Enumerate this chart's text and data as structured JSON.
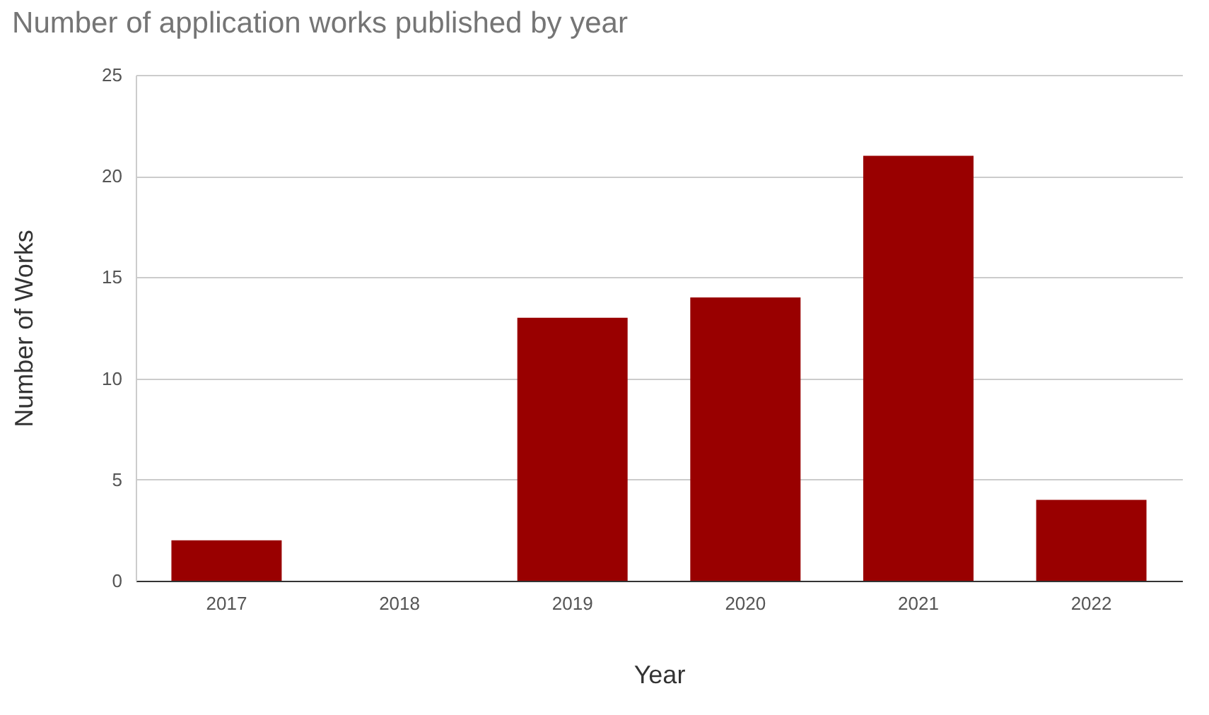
{
  "chart_data": {
    "type": "bar",
    "title": "Number of application works published by year",
    "xlabel": "Year",
    "ylabel": "Number of Works",
    "categories": [
      "2017",
      "2018",
      "2019",
      "2020",
      "2021",
      "2022"
    ],
    "values": [
      2,
      0,
      13,
      14,
      21,
      4
    ],
    "color": "#990000",
    "ylim": [
      0,
      25
    ],
    "yticks": [
      0,
      5,
      10,
      15,
      20,
      25
    ],
    "grid": "y"
  }
}
